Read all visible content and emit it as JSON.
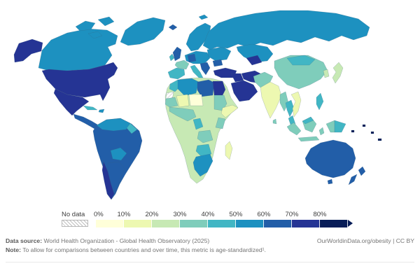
{
  "legend": {
    "no_data_label": "No data",
    "tick_labels": [
      "0%",
      "10%",
      "20%",
      "30%",
      "40%",
      "50%",
      "60%",
      "70%",
      "80%"
    ],
    "bin_colors": [
      "#ffffd9",
      "#edf8b1",
      "#c7e9b4",
      "#7fcdbb",
      "#41b6c4",
      "#1d91c0",
      "#225ea8",
      "#253494",
      "#081d58"
    ],
    "open_ended_top_bin": true
  },
  "footer": {
    "data_source_label": "Data source:",
    "data_source": "World Health Organization - Global Health Observatory (2025)",
    "link": "OurWorldinData.org/obesity | CC BY",
    "note_label": "Note:",
    "note": "To allow for comparisons between countries and over time, this metric is age-standardized¹."
  },
  "chart_data": {
    "type": "choropleth_map",
    "projection": "world",
    "legend_bins": [
      {
        "range": "0–10%",
        "color": "#ffffd9"
      },
      {
        "range": "10–20%",
        "color": "#edf8b1"
      },
      {
        "range": "20–30%",
        "color": "#c7e9b4"
      },
      {
        "range": "30–40%",
        "color": "#7fcdbb"
      },
      {
        "range": "40–50%",
        "color": "#41b6c4"
      },
      {
        "range": "50–60%",
        "color": "#1d91c0"
      },
      {
        "range": "60–70%",
        "color": "#225ea8"
      },
      {
        "range": "70–80%",
        "color": "#253494"
      },
      {
        "range": "80%+",
        "color": "#081d58"
      }
    ],
    "regions": {
      "united-states": {
        "name": "United States",
        "color": "#253494",
        "bin": "70–80%"
      },
      "canada": {
        "name": "Canada",
        "color": "#1d91c0",
        "bin": "50–60%"
      },
      "greenland": {
        "name": "Greenland",
        "color": "#1d91c0",
        "bin": "50–60%"
      },
      "iceland": {
        "name": "Iceland",
        "color": "#225ea8",
        "bin": "60–70%"
      },
      "mexico": {
        "name": "Mexico",
        "color": "#253494",
        "bin": "70–80%"
      },
      "central-america": {
        "name": "Central America",
        "color": "#225ea8",
        "bin": "60–70%"
      },
      "cuba": {
        "name": "Cuba",
        "color": "#41b6c4",
        "bin": "40–50%"
      },
      "hispaniola": {
        "name": "Hispaniola",
        "color": "#1d91c0",
        "bin": "50–60%"
      },
      "south-america": {
        "name": "Brazil / Peru / Ecuador",
        "color": "#225ea8",
        "bin": "60–70%"
      },
      "colombia-venezuela": {
        "name": "Colombia / Venezuela",
        "color": "#1d91c0",
        "bin": "50–60%"
      },
      "guyanas": {
        "name": "Guyanas",
        "color": "#41b6c4",
        "bin": "40–50%"
      },
      "bolivia-paraguay": {
        "name": "Bolivia / Paraguay",
        "color": "#1d91c0",
        "bin": "50–60%"
      },
      "chile": {
        "name": "Chile",
        "color": "#253494",
        "bin": "70–80%"
      },
      "argentina": {
        "name": "Argentina",
        "color": "#225ea8",
        "bin": "60–70%"
      },
      "scandinavia": {
        "name": "Scandinavia",
        "color": "#1d91c0",
        "bin": "50–60%"
      },
      "united-kingdom": {
        "name": "United Kingdom",
        "color": "#225ea8",
        "bin": "60–70%"
      },
      "ireland": {
        "name": "Ireland",
        "color": "#41b6c4",
        "bin": "40–50%"
      },
      "france": {
        "name": "France",
        "color": "#7fcdbb",
        "bin": "30–40%"
      },
      "iberia": {
        "name": "Spain / Portugal",
        "color": "#41b6c4",
        "bin": "40–50%"
      },
      "central-europe": {
        "name": "Central Europe",
        "color": "#1d91c0",
        "bin": "50–60%"
      },
      "germany": {
        "name": "Germany",
        "color": "#225ea8",
        "bin": "60–70%"
      },
      "italy": {
        "name": "Italy",
        "color": "#41b6c4",
        "bin": "40–50%"
      },
      "balkans": {
        "name": "Balkans / Greece",
        "color": "#225ea8",
        "bin": "60–70%"
      },
      "eastern-europe": {
        "name": "Eastern Europe",
        "color": "#1d91c0",
        "bin": "50–60%"
      },
      "romania-bulgaria": {
        "name": "Romania / Bulgaria",
        "color": "#225ea8",
        "bin": "60–70%"
      },
      "russia": {
        "name": "Russia",
        "color": "#1d91c0",
        "bin": "50–60%"
      },
      "central-asia": {
        "name": "Kazakhstan / Central Asia",
        "color": "#1d91c0",
        "bin": "50–60%"
      },
      "uzbekistan-turkmenistan": {
        "name": "Uzbekistan / Turkmenistan",
        "color": "#253494",
        "bin": "70–80%"
      },
      "turkey": {
        "name": "Turkey",
        "color": "#253494",
        "bin": "70–80%"
      },
      "iran": {
        "name": "Iran",
        "color": "#253494",
        "bin": "70–80%"
      },
      "iraq-syria": {
        "name": "Iraq / Syria",
        "color": "#253494",
        "bin": "70–80%"
      },
      "arabian-peninsula": {
        "name": "Arabian Peninsula",
        "color": "#253494",
        "bin": "70–80%"
      },
      "africa-central": {
        "name": "Central Africa",
        "color": "#c7e9b4",
        "bin": "20–30%"
      },
      "morocco": {
        "name": "Morocco",
        "color": "#41b6c4",
        "bin": "40–50%"
      },
      "western-sahara": {
        "name": "Western Sahara",
        "color": "no-data",
        "bin": "No data"
      },
      "algeria": {
        "name": "Algeria",
        "color": "#1d91c0",
        "bin": "50–60%"
      },
      "libya": {
        "name": "Libya",
        "color": "#225ea8",
        "bin": "60–70%"
      },
      "egypt": {
        "name": "Egypt",
        "color": "#253494",
        "bin": "70–80%"
      },
      "mauritania": {
        "name": "Mauritania / Senegal",
        "color": "#7fcdbb",
        "bin": "30–40%"
      },
      "mali": {
        "name": "Mali",
        "color": "#edf8b1",
        "bin": "10–20%"
      },
      "niger": {
        "name": "Niger",
        "color": "#ffffd9",
        "bin": "0–10%"
      },
      "sudan": {
        "name": "Sudan",
        "color": "#7fcdbb",
        "bin": "30–40%"
      },
      "horn-of-africa": {
        "name": "Ethiopia / Somalia",
        "color": "#edf8b1",
        "bin": "10–20%"
      },
      "west-africa": {
        "name": "West Africa coast",
        "color": "#7fcdbb",
        "bin": "30–40%"
      },
      "gabon-congo": {
        "name": "Gabon / Congo",
        "color": "#41b6c4",
        "bin": "40–50%"
      },
      "kenya-tanzania": {
        "name": "Kenya / Tanzania",
        "color": "#7fcdbb",
        "bin": "30–40%"
      },
      "angola-zambia": {
        "name": "Angola / Zambia",
        "color": "#7fcdbb",
        "bin": "30–40%"
      },
      "namibia-botswana": {
        "name": "Namibia / Botswana / Zimbabwe",
        "color": "#41b6c4",
        "bin": "40–50%"
      },
      "south-africa": {
        "name": "South Africa",
        "color": "#1d91c0",
        "bin": "50–60%"
      },
      "madagascar": {
        "name": "Madagascar",
        "color": "#edf8b1",
        "bin": "10–20%"
      },
      "afghanistan-pakistan": {
        "name": "Afghanistan / Pakistan",
        "color": "#7fcdbb",
        "bin": "30–40%"
      },
      "india": {
        "name": "India",
        "color": "#edf8b1",
        "bin": "10–20%"
      },
      "sri-lanka": {
        "name": "Sri Lanka",
        "color": "#7fcdbb",
        "bin": "30–40%"
      },
      "myanmar-bangladesh": {
        "name": "Myanmar / Bangladesh",
        "color": "#7fcdbb",
        "bin": "30–40%"
      },
      "china": {
        "name": "China",
        "color": "#7fcdbb",
        "bin": "30–40%"
      },
      "mongolia": {
        "name": "Mongolia",
        "color": "#41b6c4",
        "bin": "40–50%"
      },
      "korea": {
        "name": "Korea",
        "color": "#c7e9b4",
        "bin": "20–30%"
      },
      "japan": {
        "name": "Japan",
        "color": "#c7e9b4",
        "bin": "20–30%"
      },
      "thailand": {
        "name": "Thailand",
        "color": "#41b6c4",
        "bin": "40–50%"
      },
      "vietnam-laos": {
        "name": "Vietnam / Laos / Cambodia",
        "color": "#edf8b1",
        "bin": "10–20%"
      },
      "malaysia": {
        "name": "Malaysia",
        "color": "#41b6c4",
        "bin": "40–50%"
      },
      "indonesia": {
        "name": "Indonesia",
        "color": "#7fcdbb",
        "bin": "30–40%"
      },
      "philippines": {
        "name": "Philippines",
        "color": "#41b6c4",
        "bin": "40–50%"
      },
      "papua-new-guinea": {
        "name": "Papua New Guinea",
        "color": "#41b6c4",
        "bin": "40–50%"
      },
      "pacific-islands": {
        "name": "Pacific Islands",
        "color": "#081d58",
        "bin": "80%+"
      },
      "australia": {
        "name": "Australia",
        "color": "#225ea8",
        "bin": "60–70%"
      },
      "new-zealand": {
        "name": "New Zealand",
        "color": "#225ea8",
        "bin": "60–70%"
      }
    }
  }
}
